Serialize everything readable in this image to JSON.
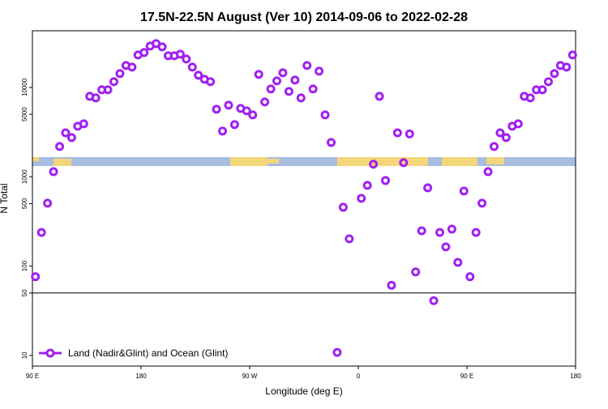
{
  "chart_data": {
    "type": "scatter",
    "title": "17.5N-22.5N August (Ver 10)   2014-09-06 to 2022-02-28",
    "x_label": "Longitude (deg E)",
    "y_label": "N Total",
    "log_y": true,
    "legend_position": "bottom-left",
    "reference_line": 50,
    "xlim": [
      90,
      540
    ],
    "xticks": [
      {
        "value": 90,
        "label": "90 E"
      },
      180,
      {
        "value": 270,
        "label": "90 W"
      },
      {
        "value": 360,
        "label": "0"
      },
      {
        "value": 450,
        "label": "90 E"
      },
      {
        "value": 540,
        "label": "180"
      }
    ],
    "ylim": [
      7.6,
      43000
    ],
    "yticks": [
      10,
      50,
      100,
      500,
      1000,
      5000,
      10000
    ],
    "x": [
      92.5,
      97.5,
      102.5,
      107.5,
      112.5,
      117.5,
      122.5,
      127.5,
      132.5,
      137.5,
      142.5,
      147.5,
      152.5,
      157.5,
      162.5,
      167.5,
      172.5,
      177.5,
      182.5,
      187.5,
      192.5,
      197.5,
      202.5,
      207.5,
      212.5,
      217.5,
      222.5,
      227.5,
      232.5,
      237.5,
      242.5,
      247.5,
      252.5,
      257.5,
      262.5,
      267.5,
      272.5,
      277.5,
      282.5,
      287.5,
      292.5,
      297.5,
      302.5,
      307.5,
      312.5,
      317.5,
      322.5,
      327.5,
      332.5,
      337.5,
      342.5,
      347.5,
      352.5,
      357.5,
      362.5,
      367.5,
      372.5,
      377.5,
      382.5,
      387.5,
      392.5,
      397.5,
      402.5,
      407.5,
      412.5,
      417.5,
      422.5,
      427.5,
      432.5,
      437.5,
      442.5,
      447.5,
      452.5,
      457.5,
      462.5,
      467.5,
      472.5,
      477.5,
      482.5,
      487.5,
      492.5,
      497.5,
      502.5,
      507.5,
      512.5,
      517.5,
      522.5,
      527.5,
      532.5,
      537.5
    ],
    "series": [
      {
        "name": "Land (Nadir&Glint) and Ocean (Glint)",
        "color": "#a020f0",
        "values": [
          76,
          238,
          506,
          1140,
          2180,
          3100,
          2740,
          3670,
          3910,
          7940,
          7620,
          9390,
          9390,
          11570,
          14250,
          17570,
          16860,
          23050,
          24550,
          29000,
          30900,
          28400,
          22600,
          22600,
          23550,
          20760,
          16860,
          13680,
          12330,
          11570,
          5690,
          3240,
          6320,
          3830,
          5810,
          5460,
          4920,
          13960,
          6870,
          9590,
          11830,
          14560,
          9020,
          12080,
          7620,
          17570,
          9590,
          15180,
          4920,
          2420,
          10.8,
          455,
          202,
          null,
          573,
          800,
          1380,
          7940,
          906,
          61,
          3100,
          1435,
          3010,
          86,
          248,
          752,
          41,
          238,
          164,
          259,
          110,
          692,
          76,
          238,
          506,
          1140,
          2180,
          3100,
          2740,
          3670,
          3910,
          7940,
          7620,
          9390,
          9390,
          11570,
          14250,
          17570,
          16860,
          23050
        ]
      }
    ]
  }
}
